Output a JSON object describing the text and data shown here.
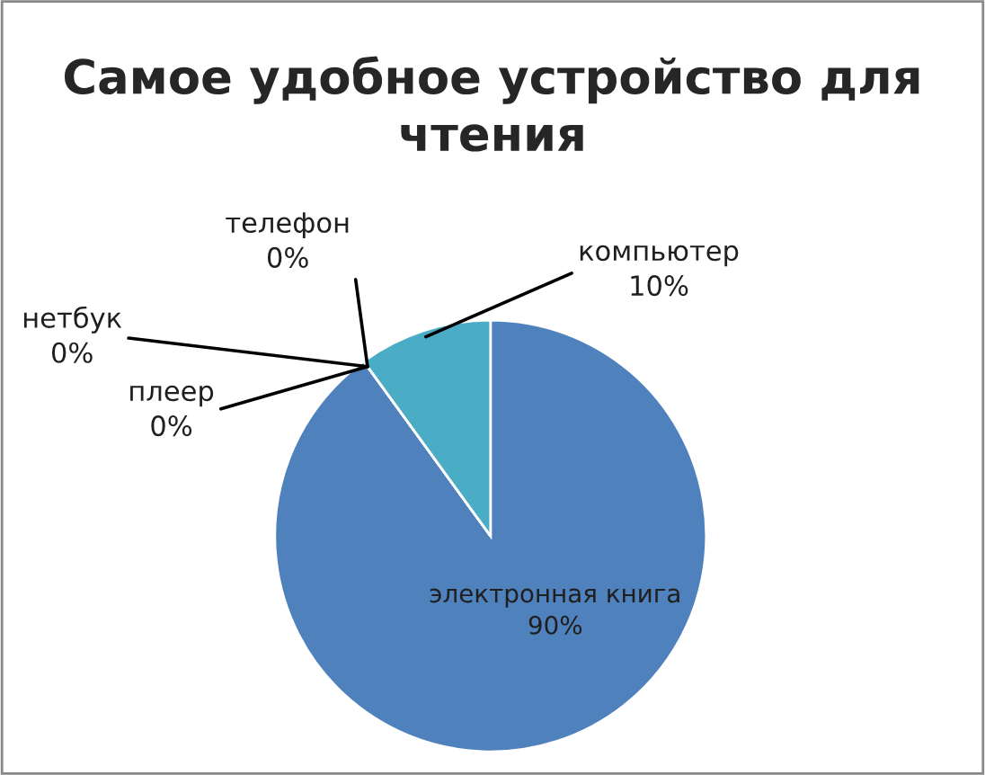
{
  "chart_data": {
    "type": "pie",
    "title": "Самое удобное устройство для чтения",
    "categories": [
      "электронная книга",
      "плеер",
      "нетбук",
      "телефон",
      "компьютер"
    ],
    "values": [
      90,
      0,
      0,
      0,
      10
    ],
    "value_labels": [
      "90%",
      "0%",
      "0%",
      "0%",
      "10%"
    ],
    "colors": [
      "#4f81bd",
      "#c0504d",
      "#9bbb59",
      "#8064a2",
      "#4bacc6"
    ],
    "legend": false
  }
}
